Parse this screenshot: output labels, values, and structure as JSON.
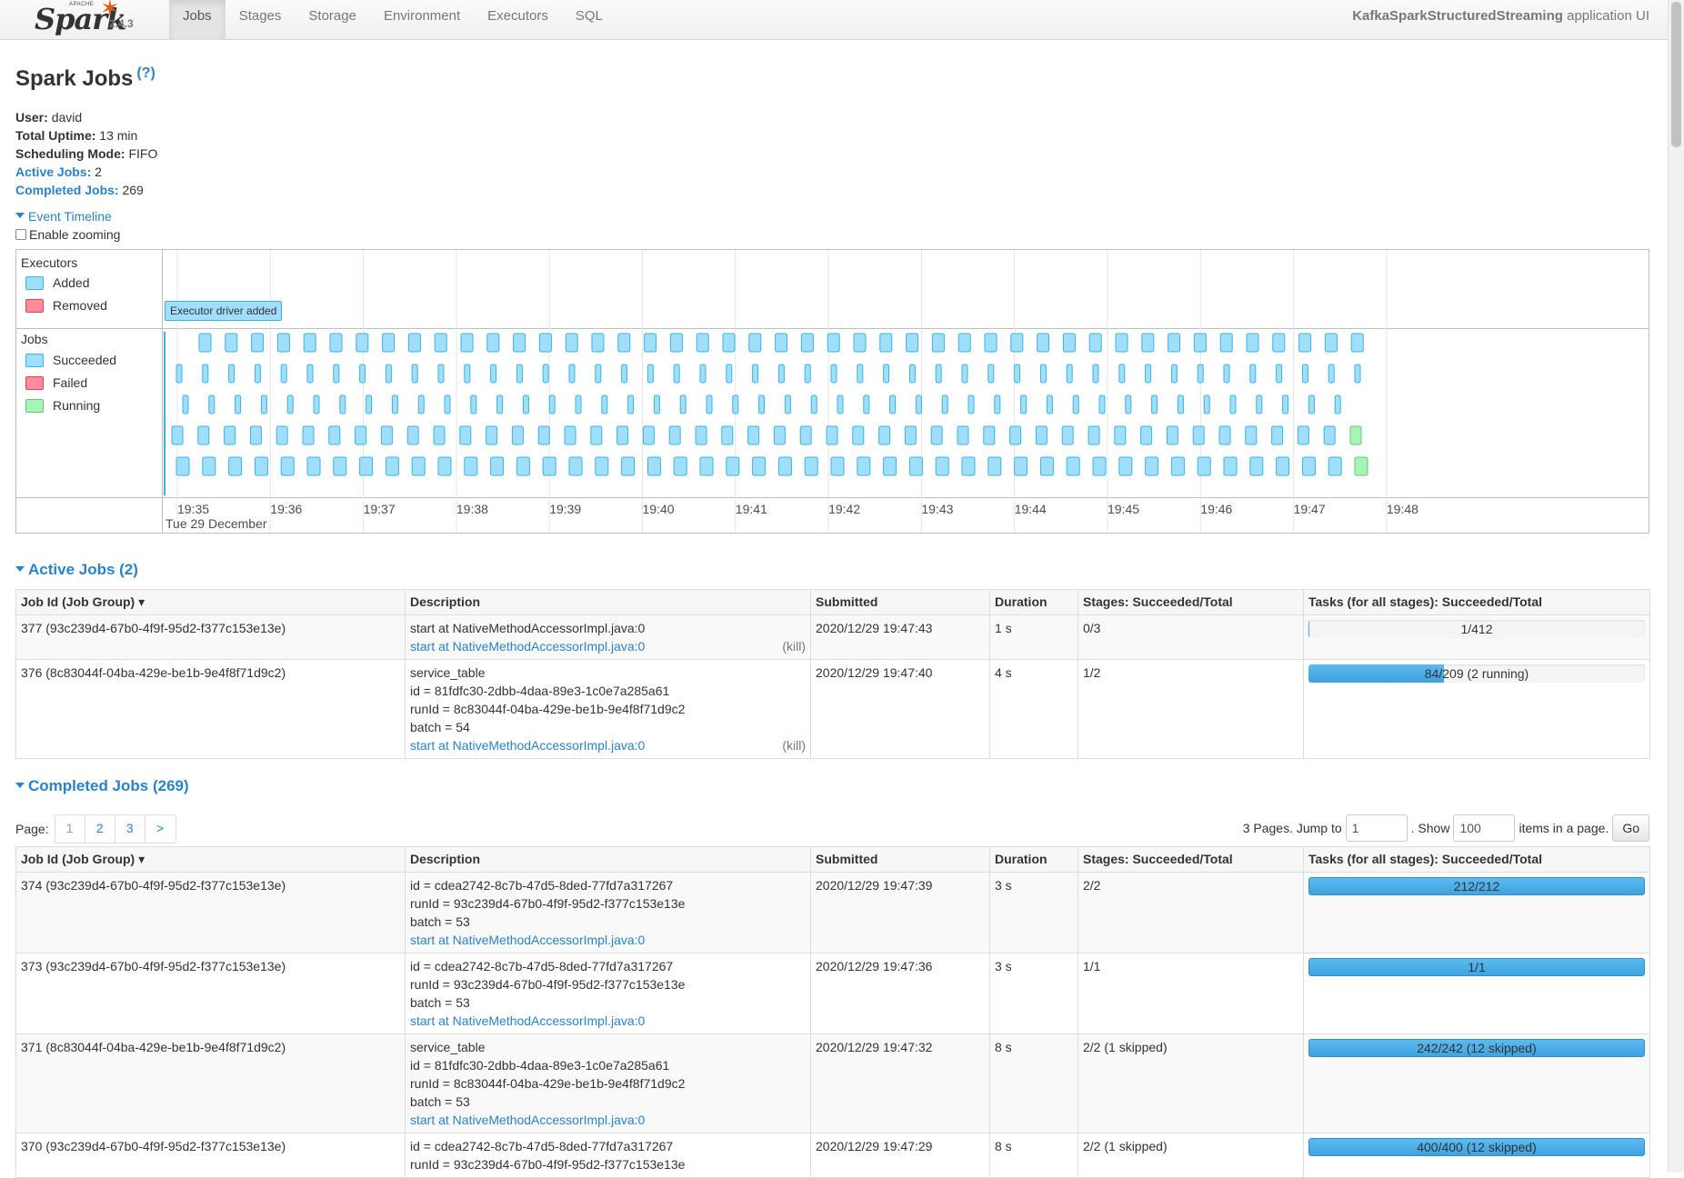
{
  "navbar": {
    "brand_small": "APACHE",
    "brand_name": "Spark",
    "version": "2.4.3",
    "tabs": [
      {
        "label": "Jobs",
        "active": true
      },
      {
        "label": "Stages",
        "active": false
      },
      {
        "label": "Storage",
        "active": false
      },
      {
        "label": "Environment",
        "active": false
      },
      {
        "label": "Executors",
        "active": false
      },
      {
        "label": "SQL",
        "active": false
      }
    ],
    "app_name": "KafkaSparkStructuredStreaming",
    "app_suffix": "application UI"
  },
  "page": {
    "title": "Spark Jobs",
    "help": "(?)",
    "summary": {
      "user_label": "User:",
      "user": "david",
      "uptime_label": "Total Uptime:",
      "uptime": "13 min",
      "scheduling_label": "Scheduling Mode:",
      "scheduling": "FIFO",
      "active_label": "Active Jobs:",
      "active": "2",
      "completed_label": "Completed Jobs:",
      "completed": "269"
    },
    "event_timeline": "Event Timeline",
    "enable_zooming": "Enable zooming"
  },
  "timeline": {
    "executors_title": "Executors",
    "legend_added": "Added",
    "legend_removed": "Removed",
    "jobs_title": "Jobs",
    "legend_succeeded": "Succeeded",
    "legend_failed": "Failed",
    "legend_running": "Running",
    "driver_added": "Executor driver added",
    "date": "Tue 29 December",
    "ticks": [
      "19:35",
      "19:36",
      "19:37",
      "19:38",
      "19:39",
      "19:40",
      "19:41",
      "19:42",
      "19:43",
      "19:44",
      "19:45",
      "19:46",
      "19:47",
      "19:48"
    ],
    "colors": {
      "succeeded": "#a0dffc",
      "succeeded_border": "#3eb0e4",
      "running": "#a7f3b8",
      "running_border": "#5fc876"
    }
  },
  "active_jobs": {
    "title": "Active Jobs (2)",
    "columns": [
      "Job Id (Job Group) ▾",
      "Description",
      "Submitted",
      "Duration",
      "Stages: Succeeded/Total",
      "Tasks (for all stages): Succeeded/Total"
    ],
    "rows": [
      {
        "id": "377 (93c239d4-67b0-4f9f-95d2-f377c153e13e)",
        "desc_lines": [
          "start at NativeMethodAccessorImpl.java:0"
        ],
        "link": "start at NativeMethodAccessorImpl.java:0",
        "kill": "(kill)",
        "submitted": "2020/12/29 19:47:43",
        "duration": "1 s",
        "stages": "0/3",
        "tasks": "1/412",
        "progress": 0.0024
      },
      {
        "id": "376 (8c83044f-04ba-429e-be1b-9e4f8f71d9c2)",
        "desc_lines": [
          "service_table",
          "id = 81fdfc30-2dbb-4daa-89e3-1c0e7a285a61",
          "runId = 8c83044f-04ba-429e-be1b-9e4f8f71d9c2",
          "batch = 54"
        ],
        "link": "start at NativeMethodAccessorImpl.java:0",
        "kill": "(kill)",
        "submitted": "2020/12/29 19:47:40",
        "duration": "4 s",
        "stages": "1/2",
        "tasks": "84/209 (2 running)",
        "progress": 0.402
      }
    ]
  },
  "completed_jobs": {
    "title": "Completed Jobs (269)",
    "pager": {
      "label": "Page:",
      "pages": [
        "1",
        "2",
        "3",
        ">"
      ],
      "current": "1"
    },
    "jump": {
      "pages_text": "3 Pages. Jump to",
      "jump_value": "1",
      "show_text": ". Show",
      "show_value": "100",
      "items_text": "items in a page.",
      "go": "Go"
    },
    "columns": [
      "Job Id (Job Group) ▾",
      "Description",
      "Submitted",
      "Duration",
      "Stages: Succeeded/Total",
      "Tasks (for all stages): Succeeded/Total"
    ],
    "rows": [
      {
        "id": "374 (93c239d4-67b0-4f9f-95d2-f377c153e13e)",
        "desc_lines": [
          "id = cdea2742-8c7b-47d5-8ded-77fd7a317267",
          "runId = 93c239d4-67b0-4f9f-95d2-f377c153e13e",
          "batch = 53"
        ],
        "link": "start at NativeMethodAccessorImpl.java:0",
        "submitted": "2020/12/29 19:47:39",
        "duration": "3 s",
        "stages": "2/2",
        "tasks": "212/212",
        "progress": 1
      },
      {
        "id": "373 (93c239d4-67b0-4f9f-95d2-f377c153e13e)",
        "desc_lines": [
          "id = cdea2742-8c7b-47d5-8ded-77fd7a317267",
          "runId = 93c239d4-67b0-4f9f-95d2-f377c153e13e",
          "batch = 53"
        ],
        "link": "start at NativeMethodAccessorImpl.java:0",
        "submitted": "2020/12/29 19:47:36",
        "duration": "3 s",
        "stages": "1/1",
        "tasks": "1/1",
        "progress": 1
      },
      {
        "id": "371 (8c83044f-04ba-429e-be1b-9e4f8f71d9c2)",
        "desc_lines": [
          "service_table",
          "id = 81fdfc30-2dbb-4daa-89e3-1c0e7a285a61",
          "runId = 8c83044f-04ba-429e-be1b-9e4f8f71d9c2",
          "batch = 53"
        ],
        "link": "start at NativeMethodAccessorImpl.java:0",
        "submitted": "2020/12/29 19:47:32",
        "duration": "8 s",
        "stages": "2/2 (1 skipped)",
        "tasks": "242/242 (12 skipped)",
        "progress": 1
      },
      {
        "id": "370 (93c239d4-67b0-4f9f-95d2-f377c153e13e)",
        "desc_lines": [
          "id = cdea2742-8c7b-47d5-8ded-77fd7a317267",
          "runId = 93c239d4-67b0-4f9f-95d2-f377c153e13e"
        ],
        "link": "",
        "submitted": "2020/12/29 19:47:29",
        "duration": "8 s",
        "stages": "2/2 (1 skipped)",
        "tasks": "400/400 (12 skipped)",
        "progress": 1
      }
    ]
  }
}
